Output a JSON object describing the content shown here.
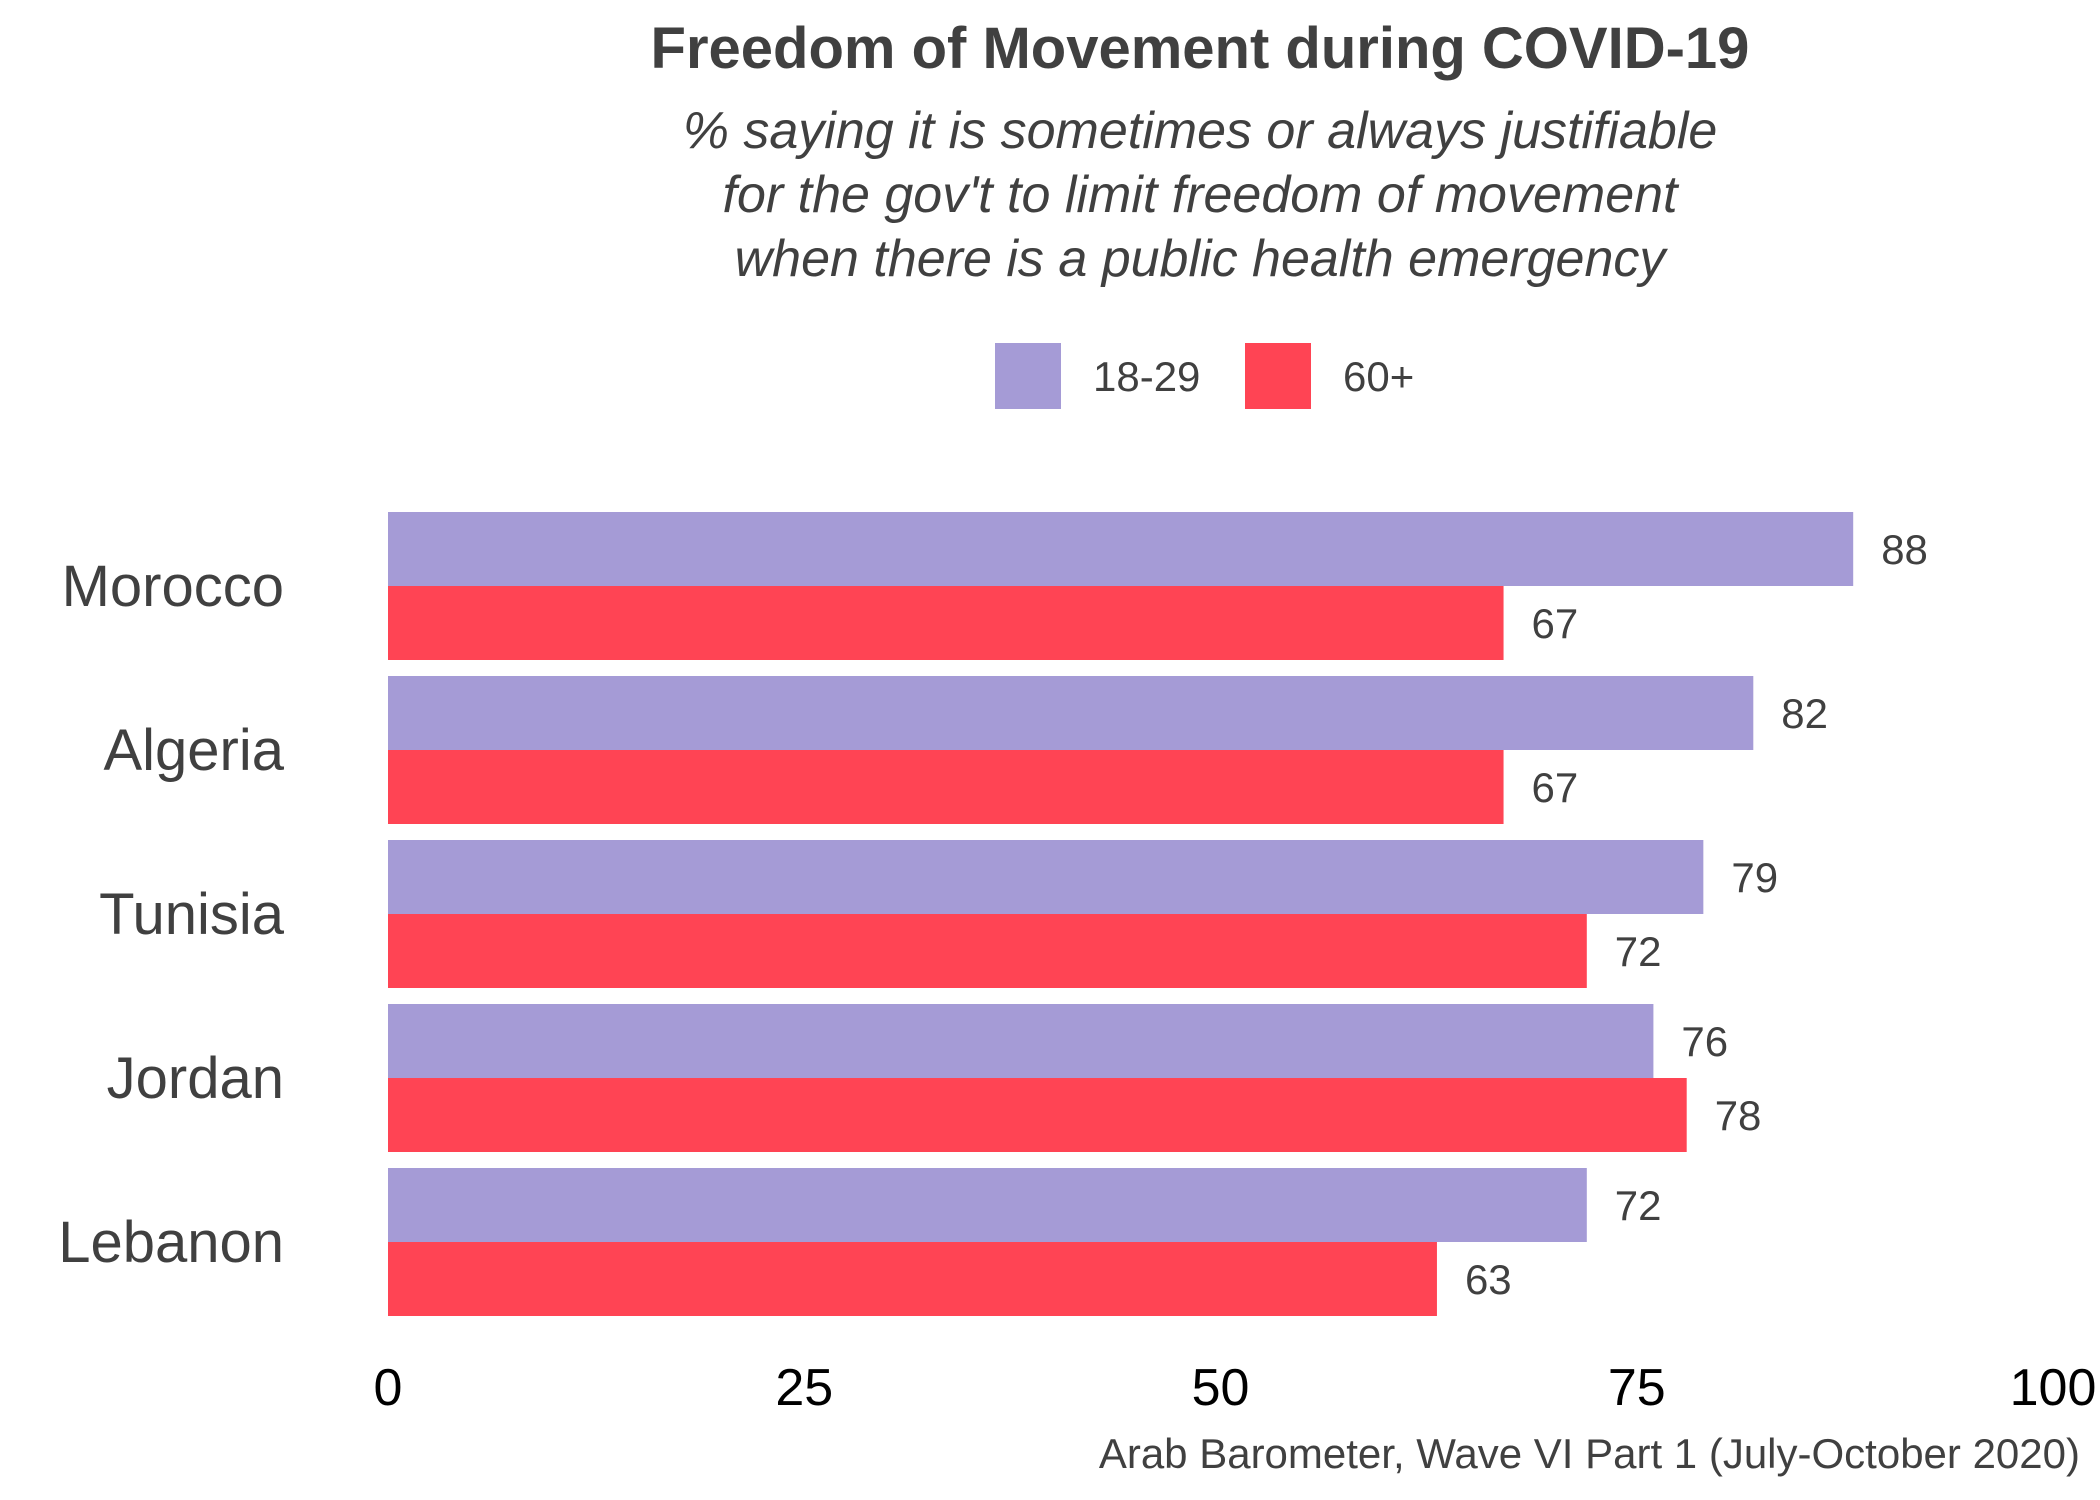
{
  "chart_data": {
    "type": "bar",
    "orientation": "horizontal",
    "title": "Freedom of Movement during COVID-19",
    "subtitle_lines": [
      "% saying it is sometimes or always justifiable",
      "for the gov't to limit freedom of movement",
      "when there is a public health emergency"
    ],
    "caption": "Arab Barometer, Wave VI Part 1 (July-October 2020)",
    "categories": [
      "Morocco",
      "Algeria",
      "Tunisia",
      "Jordan",
      "Lebanon"
    ],
    "series": [
      {
        "name": "18-29",
        "color": "#A59BD6",
        "values": [
          88,
          82,
          79,
          76,
          72
        ]
      },
      {
        "name": "60+",
        "color": "#FF4454",
        "values": [
          67,
          67,
          72,
          78,
          63
        ]
      }
    ],
    "xlim": [
      0,
      100
    ],
    "xticks": [
      "0",
      "25",
      "50",
      "75",
      "100"
    ],
    "xtick_values": [
      0,
      25,
      50,
      75,
      100
    ],
    "xlabel": "",
    "ylabel": "",
    "grid": false,
    "legend_position": "top-center"
  }
}
